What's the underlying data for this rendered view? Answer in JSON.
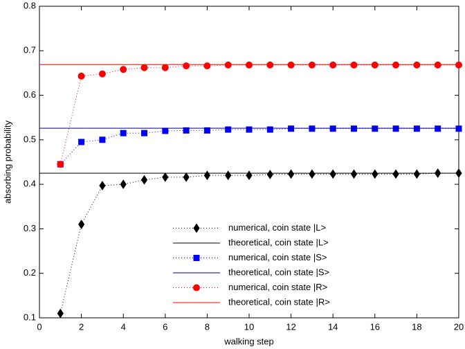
{
  "chart_data": {
    "type": "line",
    "xlabel": "walking step",
    "ylabel": "absorbing probability",
    "xlim": [
      0,
      20
    ],
    "ylim": [
      0.1,
      0.8
    ],
    "xticks": [
      0,
      2,
      4,
      6,
      8,
      10,
      12,
      14,
      16,
      18,
      20
    ],
    "yticks": [
      0.1,
      0.2,
      0.3,
      0.4,
      0.5,
      0.6,
      0.7,
      0.8
    ],
    "legend": "lower center",
    "series": [
      {
        "name": "numerical, coin state |L>",
        "color": "#000000",
        "marker": "diamond",
        "line_style": "dotted",
        "x": [
          1,
          2,
          3,
          4,
          5,
          6,
          7,
          8,
          9,
          10,
          11,
          12,
          13,
          14,
          15,
          16,
          17,
          18,
          19,
          20
        ],
        "values": [
          0.11,
          0.31,
          0.397,
          0.4,
          0.41,
          0.416,
          0.416,
          0.42,
          0.42,
          0.42,
          0.422,
          0.423,
          0.423,
          0.423,
          0.423,
          0.423,
          0.423,
          0.423,
          0.425,
          0.425
        ]
      },
      {
        "name": "theoretical, coin state |L>",
        "color": "#000000",
        "marker": "none",
        "line_style": "solid",
        "x": [
          0,
          20
        ],
        "values": [
          0.425,
          0.425
        ]
      },
      {
        "name": "numerical, coin state |S>",
        "color": "#0000ff",
        "marker": "square",
        "line_style": "dotted",
        "x": [
          1,
          2,
          3,
          4,
          5,
          6,
          7,
          8,
          9,
          10,
          11,
          12,
          13,
          14,
          15,
          16,
          17,
          18,
          19,
          20
        ],
        "values": [
          0.445,
          0.495,
          0.5,
          0.515,
          0.515,
          0.52,
          0.521,
          0.521,
          0.523,
          0.523,
          0.523,
          0.525,
          0.525,
          0.525,
          0.525,
          0.525,
          0.525,
          0.525,
          0.525,
          0.525
        ]
      },
      {
        "name": "theoretical, coin state |S>",
        "color": "#000080",
        "marker": "none",
        "line_style": "solid",
        "x": [
          0,
          20
        ],
        "values": [
          0.526,
          0.526
        ]
      },
      {
        "name": "numerical, coin state |R>",
        "color": "#ff0000",
        "marker": "circle",
        "line_style": "dotted",
        "x": [
          1,
          2,
          3,
          4,
          5,
          6,
          7,
          8,
          9,
          10,
          11,
          12,
          13,
          14,
          15,
          16,
          17,
          18,
          19,
          20
        ],
        "values": [
          0.445,
          0.643,
          0.648,
          0.658,
          0.662,
          0.662,
          0.666,
          0.666,
          0.668,
          0.668,
          0.668,
          0.668,
          0.668,
          0.668,
          0.668,
          0.668,
          0.668,
          0.668,
          0.668,
          0.668
        ]
      },
      {
        "name": "theoretical, coin state |R>",
        "color": "#ff0000",
        "marker": "none",
        "line_style": "solid",
        "x": [
          0,
          20
        ],
        "values": [
          0.669,
          0.669
        ]
      }
    ]
  }
}
